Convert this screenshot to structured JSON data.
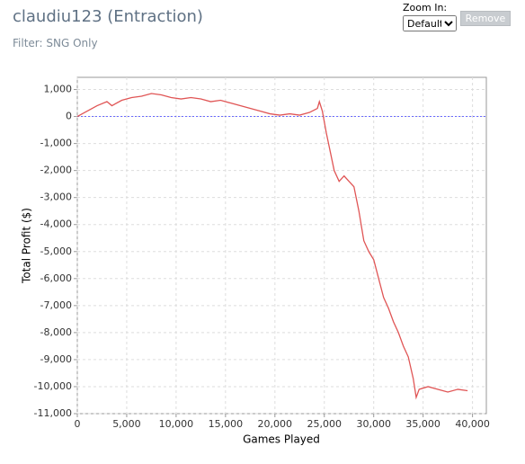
{
  "header": {
    "title": "claudiu123 (Entraction)",
    "filter": "Filter: SNG Only"
  },
  "controls": {
    "zoom_label": "Zoom In:",
    "zoom_option": "Default",
    "button": "Remove"
  },
  "chart_data": {
    "type": "line",
    "x_label": "Games Played",
    "y_label": "Total Profit ($)",
    "xlim": [
      0,
      41400
    ],
    "ylim": [
      -11000,
      1450
    ],
    "xticks": [
      0,
      {
        "value": 5000,
        "label": "5,000"
      },
      {
        "value": 10000,
        "label": "10,000"
      },
      {
        "value": 15000,
        "label": "15,000"
      },
      {
        "value": 20000,
        "label": "20,000"
      },
      {
        "value": 25000,
        "label": "25,000"
      },
      {
        "value": 30000,
        "label": "30,000"
      },
      {
        "value": 35000,
        "label": "35,000"
      },
      {
        "value": 40000,
        "label": "40,000"
      }
    ],
    "yticks": [
      {
        "value": 1000,
        "label": "1,000"
      },
      0,
      {
        "value": -1000,
        "label": "-1,000"
      },
      {
        "value": -2000,
        "label": "-2,000"
      },
      {
        "value": -3000,
        "label": "-3,000"
      },
      {
        "value": -4000,
        "label": "-4,000"
      },
      {
        "value": -5000,
        "label": "-5,000"
      },
      {
        "value": -6000,
        "label": "-6,000"
      },
      {
        "value": -7000,
        "label": "-7,000"
      },
      {
        "value": -8000,
        "label": "-8,000"
      },
      {
        "value": -9000,
        "label": "-9,000"
      },
      {
        "value": -10000,
        "label": "-10,000"
      },
      {
        "value": -11000,
        "label": "-11,000"
      }
    ],
    "grid": true,
    "baseline": 0,
    "baseline_color": "#6a6aff",
    "series": [
      {
        "color": "#e05555",
        "x": [
          0,
          1000,
          2000,
          3000,
          3500,
          4500,
          5500,
          6500,
          7500,
          8500,
          9500,
          10500,
          11500,
          12500,
          13500,
          14500,
          15500,
          16500,
          17500,
          18500,
          19500,
          20500,
          21500,
          22500,
          23500,
          24300,
          24500,
          24800,
          25200,
          25600,
          26000,
          26500,
          27000,
          27500,
          28000,
          28500,
          29000,
          29500,
          30000,
          30500,
          31000,
          31500,
          32000,
          32500,
          33000,
          33500,
          34000,
          34300,
          34600,
          35500,
          36500,
          37500,
          38500,
          39500
        ],
        "values": [
          0,
          200,
          400,
          550,
          400,
          600,
          700,
          750,
          850,
          800,
          700,
          650,
          700,
          650,
          550,
          600,
          500,
          400,
          300,
          200,
          100,
          50,
          100,
          50,
          150,
          300,
          550,
          200,
          -600,
          -1300,
          -2000,
          -2400,
          -2200,
          -2400,
          -2600,
          -3500,
          -4600,
          -5000,
          -5300,
          -6000,
          -6700,
          -7100,
          -7600,
          -8000,
          -8500,
          -8900,
          -9700,
          -10400,
          -10100,
          -10000,
          -10100,
          -10200,
          -10100,
          -10150
        ]
      }
    ]
  }
}
